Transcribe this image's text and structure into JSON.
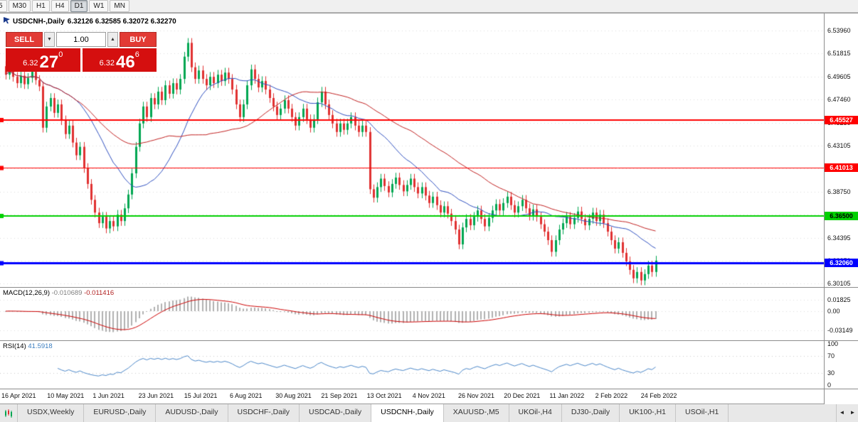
{
  "toolbar": {
    "timeframes": [
      "5",
      "M30",
      "H1",
      "H4",
      "D1",
      "W1",
      "MN"
    ],
    "active": "D1"
  },
  "chart": {
    "symbol_period": "USDCNH-,Daily",
    "quotes": "6.32126 6.32585 6.32072 6.32270"
  },
  "trade_panel": {
    "sell_label": "SELL",
    "buy_label": "BUY",
    "volume": "1.00",
    "bid_small": "6.32",
    "bid_big": "27",
    "bid_sup": "0",
    "ask_small": "6.32",
    "ask_big": "46",
    "ask_sup": "6"
  },
  "icons": {
    "volume_down": "▼",
    "volume_up": "▲",
    "tab_scroll_left": "◄",
    "tab_scroll_right": "►"
  },
  "price_axis": {
    "labels": [
      "6.53960",
      "6.51815",
      "6.49605",
      "6.47460",
      "6.45250",
      "6.43105",
      "6.40960",
      "6.38750",
      "6.36605",
      "6.34395",
      "6.32250",
      "6.30105"
    ],
    "tags": [
      {
        "text": "6.45527",
        "value": 6.45527,
        "bg": "#ff0000",
        "fg": "#ffffff"
      },
      {
        "text": "6.41013",
        "value": 6.41013,
        "bg": "#ff0000",
        "fg": "#ffffff"
      },
      {
        "text": "6.36500",
        "value": 6.365,
        "bg": "#00d000",
        "fg": "#000000"
      },
      {
        "text": "6.32060",
        "value": 6.3206,
        "bg": "#0000ff",
        "fg": "#ffffff"
      }
    ]
  },
  "levels": [
    {
      "value": 6.45527,
      "color": "#ff0000",
      "width": 2
    },
    {
      "value": 6.41013,
      "color": "#ff0000",
      "width": 1
    },
    {
      "value": 6.365,
      "color": "#00d000",
      "width": 2
    },
    {
      "value": 6.3206,
      "color": "#0000ff",
      "width": 3
    }
  ],
  "macd": {
    "label": "MACD(12,26,9)",
    "value": "-0.010689",
    "signal": "-0.011416",
    "axis": [
      "0.01825",
      "0.00",
      "-0.03149"
    ]
  },
  "rsi": {
    "label": "RSI(14)",
    "value": "41.5918",
    "axis": [
      100,
      70,
      30,
      0
    ],
    "levels": [
      70,
      30
    ]
  },
  "time_axis": [
    "16 Apr 2021",
    "10 May 2021",
    "1 Jun 2021",
    "23 Jun 2021",
    "15 Jul 2021",
    "6 Aug 2021",
    "30 Aug 2021",
    "21 Sep 2021",
    "13 Oct 2021",
    "4 Nov 2021",
    "26 Nov 2021",
    "20 Dec 2021",
    "11 Jan 2022",
    "2 Feb 2022",
    "24 Feb 2022"
  ],
  "tabs": [
    "USDX,Weekly",
    "EURUSD-,Daily",
    "AUDUSD-,Daily",
    "USDCHF-,Daily",
    "USDCAD-,Daily",
    "USDCNH-,Daily",
    "XAUUSD-,M5",
    "UKOil-,H4",
    "DJ30-,Daily",
    "UK100-,H1",
    "USOil-,H1"
  ],
  "active_index": 5,
  "colors": {
    "candle_up": "#00a651",
    "candle_down": "#e03131",
    "ma_fast": "#2e4fbf",
    "ma_slow": "#c02020",
    "macd_hist": "#b0b0b0",
    "macd_signal": "#cc0000",
    "rsi_line": "#4a86c8",
    "grid": "#dcdcdc"
  },
  "chart_data": {
    "type": "candlestick",
    "title": "USDCNH-,Daily",
    "open": 6.32126,
    "high": 6.32585,
    "low": 6.32072,
    "close": 6.3227,
    "price_min": 6.2978,
    "price_max": 6.5557,
    "open_seed": 6.506,
    "wick": 0.0045,
    "bar_start": 8,
    "bar_step": 5.22,
    "ma_fast": 20,
    "ma_slow": 45,
    "macd_fast": 12,
    "macd_slow": 26,
    "macd_signal": 9,
    "rsi_period": 14,
    "closes": [
      6.498,
      6.504,
      6.496,
      6.49,
      6.497,
      6.489,
      6.495,
      6.501,
      6.493,
      6.487,
      6.448,
      6.468,
      6.476,
      6.462,
      6.47,
      6.455,
      6.442,
      6.45,
      6.434,
      6.422,
      6.43,
      6.41,
      6.395,
      6.38,
      6.368,
      6.358,
      6.364,
      6.353,
      6.36,
      6.355,
      6.366,
      6.36,
      6.372,
      6.385,
      6.405,
      6.43,
      6.452,
      6.468,
      6.458,
      6.476,
      6.47,
      6.482,
      6.474,
      6.488,
      6.48,
      6.49,
      6.484,
      6.494,
      6.515,
      6.528,
      6.505,
      6.494,
      6.502,
      6.494,
      6.488,
      6.496,
      6.49,
      6.498,
      6.492,
      6.5,
      6.494,
      6.484,
      6.47,
      6.458,
      6.47,
      6.488,
      6.503,
      6.494,
      6.486,
      6.492,
      6.484,
      6.476,
      6.468,
      6.46,
      6.466,
      6.474,
      6.466,
      6.458,
      6.45,
      6.458,
      6.466,
      6.456,
      6.448,
      6.456,
      6.472,
      6.482,
      6.47,
      6.46,
      6.452,
      6.444,
      6.452,
      6.446,
      6.452,
      6.458,
      6.45,
      6.444,
      6.45,
      6.444,
      6.39,
      6.382,
      6.392,
      6.4,
      6.393,
      6.387,
      6.395,
      6.401,
      6.394,
      6.388,
      6.394,
      6.4,
      6.392,
      6.386,
      6.392,
      6.384,
      6.377,
      6.383,
      6.375,
      6.368,
      6.374,
      6.367,
      6.36,
      6.352,
      6.338,
      6.354,
      6.362,
      6.356,
      6.364,
      6.37,
      6.362,
      6.355,
      6.363,
      6.37,
      6.376,
      6.37,
      6.377,
      6.383,
      6.375,
      6.368,
      6.374,
      6.38,
      6.372,
      6.365,
      6.371,
      6.364,
      6.357,
      6.35,
      6.342,
      6.331,
      6.342,
      6.352,
      6.358,
      6.364,
      6.357,
      6.363,
      6.369,
      6.362,
      6.356,
      6.362,
      6.368,
      6.36,
      6.366,
      6.358,
      6.35,
      6.342,
      6.334,
      6.34,
      6.33,
      6.322,
      6.314,
      6.306,
      6.312,
      6.304,
      6.31,
      6.318,
      6.312,
      6.3227
    ]
  }
}
